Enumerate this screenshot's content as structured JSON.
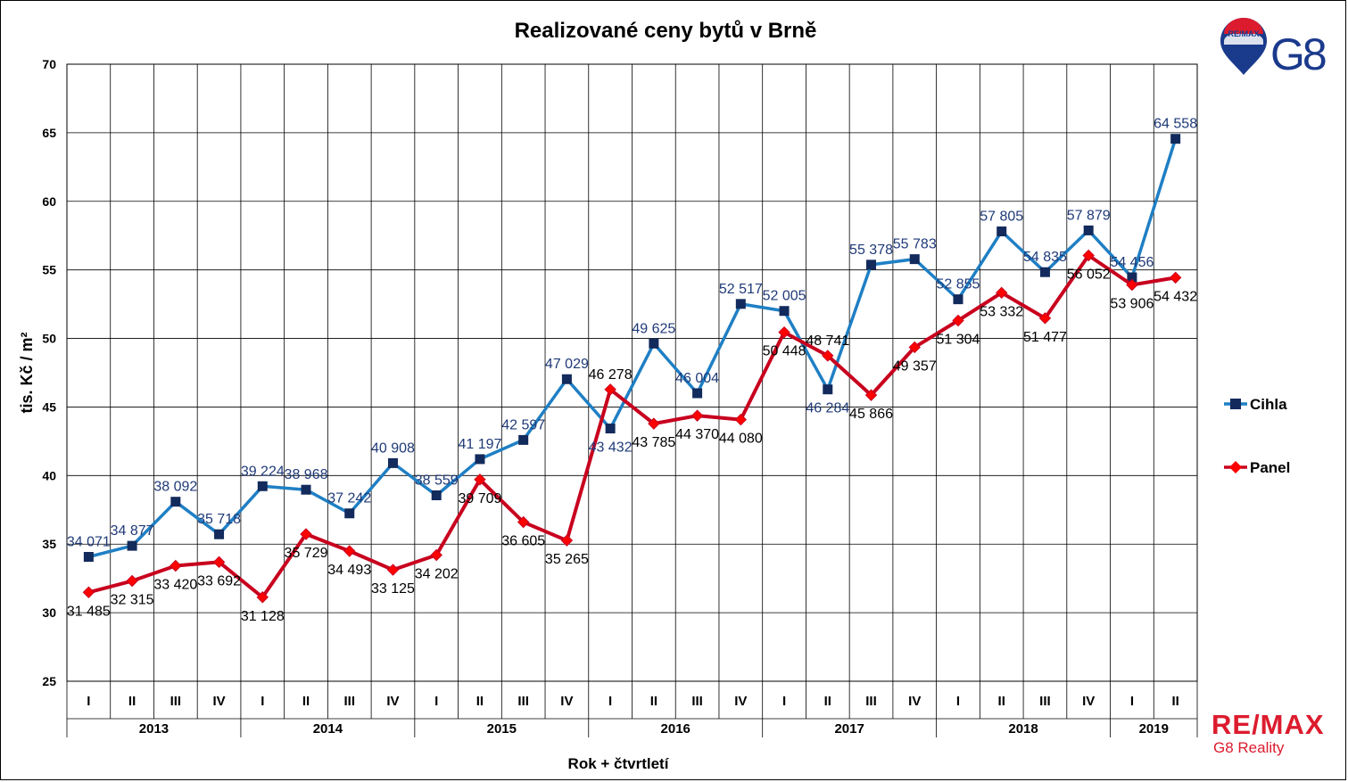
{
  "colors": {
    "cihla": "#1f7fc4",
    "cihla_marker": "#132a5c",
    "cihla_label": "#1f3a78",
    "panel": "#c8001e",
    "panel_marker": "#ff0000",
    "grid": "#000000"
  },
  "brand": {
    "top_logo_badge": "RE/MAX",
    "top_logo_text": "G8",
    "bottom_logo_main": "RE/MAX",
    "bottom_logo_sub": "G8 Reality"
  },
  "chart_data": {
    "type": "line",
    "title": "Realizované ceny bytů v Brně",
    "xlabel": "Rok + čtvrtletí",
    "ylabel": "tis. Kč / m²",
    "ylim": [
      25,
      70
    ],
    "yticks": [
      "25",
      "30",
      "35",
      "40",
      "45",
      "50",
      "55",
      "60",
      "65",
      "70"
    ],
    "grid": true,
    "legend_position": "right",
    "categories": [
      "I",
      "II",
      "III",
      "IV",
      "I",
      "II",
      "III",
      "IV",
      "I",
      "II",
      "III",
      "IV",
      "I",
      "II",
      "III",
      "IV",
      "I",
      "II",
      "III",
      "IV",
      "I",
      "II",
      "III",
      "IV",
      "I",
      "II"
    ],
    "years": [
      {
        "label": "2013",
        "quarters": 4
      },
      {
        "label": "2014",
        "quarters": 4
      },
      {
        "label": "2015",
        "quarters": 4
      },
      {
        "label": "2016",
        "quarters": 4
      },
      {
        "label": "2017",
        "quarters": 4
      },
      {
        "label": "2018",
        "quarters": 4
      },
      {
        "label": "2019",
        "quarters": 2
      }
    ],
    "series": [
      {
        "name": "Cihla",
        "values": [
          34.071,
          34.877,
          38.092,
          35.718,
          39.224,
          38.968,
          37.242,
          40.908,
          38.559,
          41.197,
          42.597,
          47.029,
          43.432,
          49.625,
          46.004,
          52.517,
          52.005,
          46.284,
          55.378,
          55.783,
          52.855,
          57.805,
          54.835,
          57.879,
          54.456,
          64.558
        ],
        "labels": [
          "34 071",
          "34 877",
          "38 092",
          "35 718",
          "39 224",
          "38 968",
          "37 242",
          "40 908",
          "38 559",
          "41 197",
          "42 597",
          "47 029",
          "43 432",
          "49 625",
          "46 004",
          "52 517",
          "52 005",
          "46 284",
          "55 378",
          "55 783",
          "52 855",
          "57 805",
          "54 835",
          "57 879",
          "54 456",
          "64 558"
        ]
      },
      {
        "name": "Panel",
        "values": [
          31.485,
          32.315,
          33.42,
          33.692,
          31.128,
          35.729,
          34.493,
          33.125,
          34.202,
          39.709,
          36.605,
          35.265,
          46.278,
          43.785,
          44.37,
          44.08,
          50.448,
          48.741,
          45.866,
          49.357,
          51.304,
          53.332,
          51.477,
          56.052,
          53.906,
          54.432
        ],
        "labels": [
          "31 485",
          "32 315",
          "33 420",
          "33 692",
          "31 128",
          "35 729",
          "34 493",
          "33 125",
          "34 202",
          "39 709",
          "36 605",
          "35 265",
          "46 278",
          "43 785",
          "44 370",
          "44 080",
          "50 448",
          "48 741",
          "45 866",
          "49 357",
          "51 304",
          "53 332",
          "51 477",
          "56 052",
          "53 906",
          "54 432"
        ]
      }
    ]
  }
}
